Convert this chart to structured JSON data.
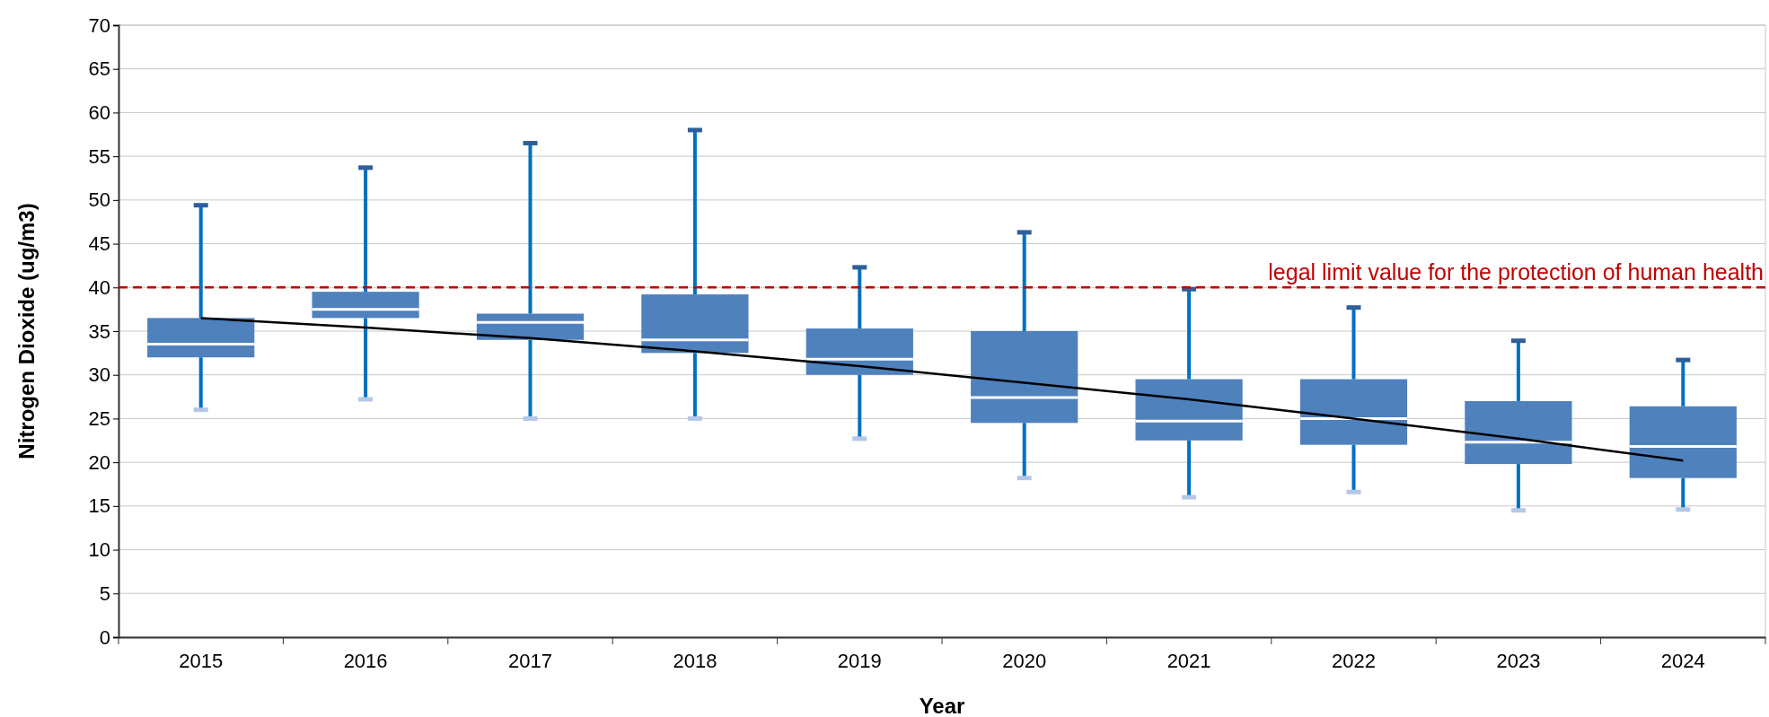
{
  "chart_data": {
    "type": "box",
    "xlabel": "Year",
    "ylabel": "Nitrogen Dioxide (ug/m3)",
    "categories": [
      "2015",
      "2016",
      "2017",
      "2018",
      "2019",
      "2020",
      "2021",
      "2022",
      "2023",
      "2024"
    ],
    "color": "#4f81bd",
    "boxes": [
      {
        "low": 26,
        "q1": 32,
        "median": 33.5,
        "q3": 36.5,
        "high": 49.4
      },
      {
        "low": 27.2,
        "q1": 36.5,
        "median": 37.5,
        "q3": 39.5,
        "high": 53.7
      },
      {
        "low": 25,
        "q1": 34,
        "median": 36,
        "q3": 37,
        "high": 56.5
      },
      {
        "low": 25,
        "q1": 32.5,
        "median": 34,
        "q3": 39.2,
        "high": 58
      },
      {
        "low": 22.7,
        "q1": 30,
        "median": 31.8,
        "q3": 35.3,
        "high": 42.3
      },
      {
        "low": 18.2,
        "q1": 24.5,
        "median": 27.4,
        "q3": 35,
        "high": 46.3
      },
      {
        "low": 16,
        "q1": 22.5,
        "median": 24.7,
        "q3": 29.5,
        "high": 39.8
      },
      {
        "low": 16.6,
        "q1": 22,
        "median": 25,
        "q3": 29.5,
        "high": 37.7
      },
      {
        "low": 14.5,
        "q1": 19.8,
        "median": 22.3,
        "q3": 27,
        "high": 33.9
      },
      {
        "low": 14.6,
        "q1": 18.2,
        "median": 21.8,
        "q3": 26.4,
        "high": 31.7
      }
    ],
    "series": [
      {
        "type": "line",
        "color": "#000000",
        "values": [
          36.5,
          35.4,
          34.2,
          32.7,
          31,
          29.1,
          27.2,
          25,
          22.7,
          20.2
        ]
      }
    ],
    "ylim": [
      0,
      70
    ],
    "yticks": [
      0,
      5,
      10,
      15,
      20,
      25,
      30,
      35,
      40,
      45,
      50,
      55,
      60,
      65,
      70
    ],
    "grid": "y",
    "ref_lines": [
      {
        "axis": "y",
        "value": 40,
        "label": "legal limit value for the protection of human health",
        "color": "#c00000",
        "line_style": "dashed"
      }
    ]
  }
}
